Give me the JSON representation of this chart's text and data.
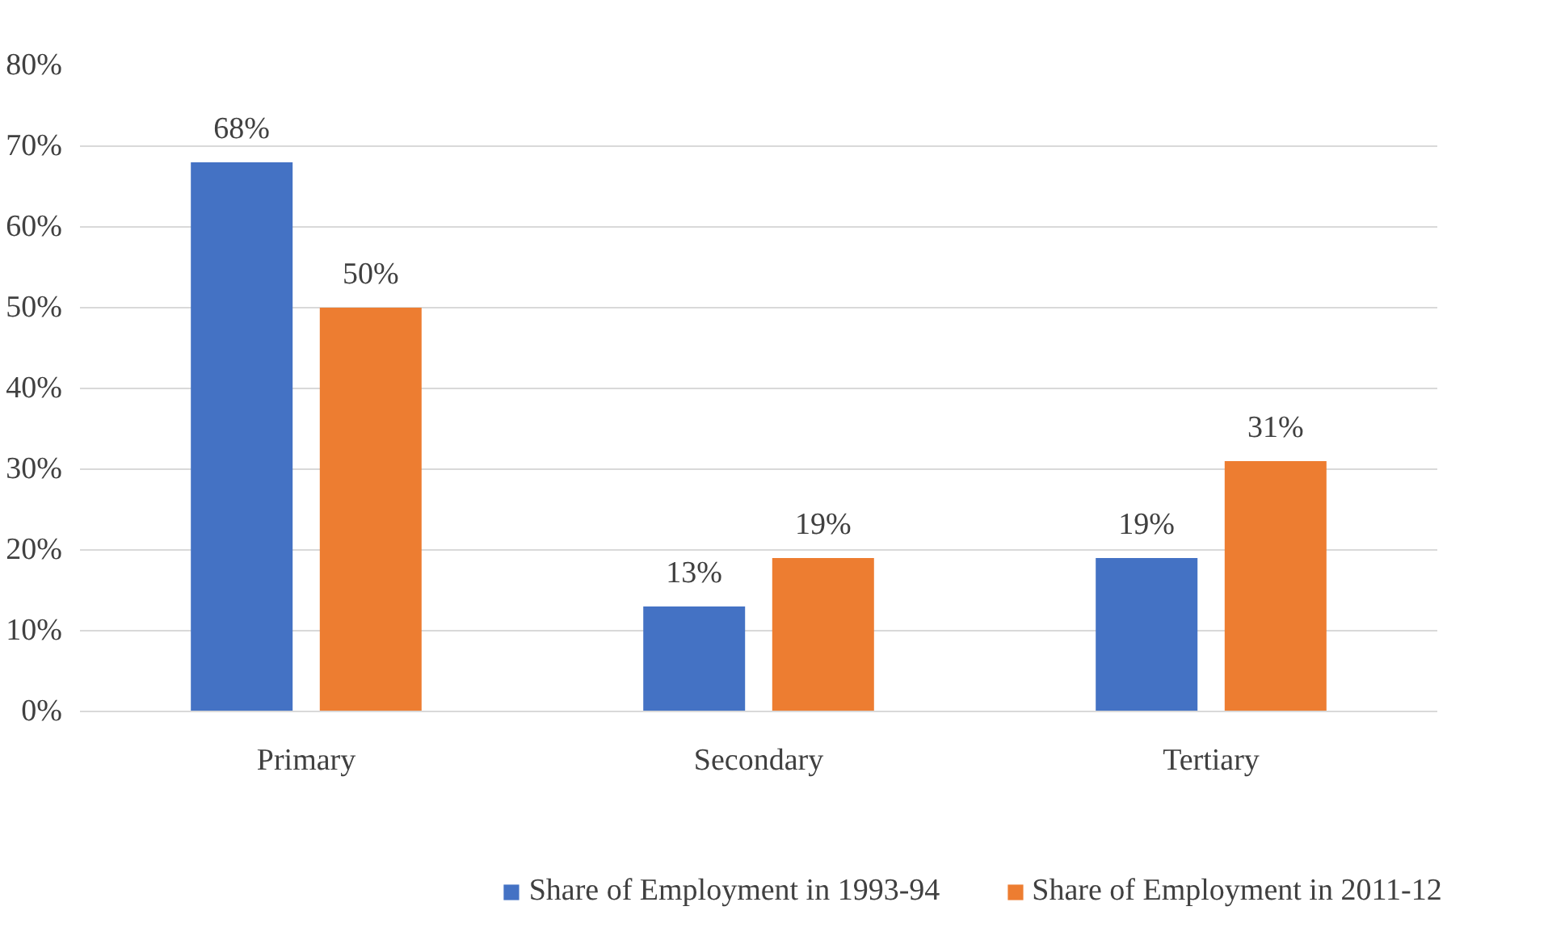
{
  "chart_data": {
    "type": "bar",
    "categories": [
      "Primary",
      "Secondary",
      "Tertiary"
    ],
    "series": [
      {
        "name": "Share of Employment in 1993-94",
        "color": "#4472c4",
        "values": [
          68,
          13,
          19
        ]
      },
      {
        "name": "Share of Employment in 2011-12",
        "color": "#ed7d31",
        "values": [
          50,
          19,
          31
        ]
      }
    ],
    "ylim": [
      0,
      80
    ],
    "yticks": [
      {
        "value": 0,
        "label": "0%"
      },
      {
        "value": 10,
        "label": "10%"
      },
      {
        "value": 20,
        "label": "20%"
      },
      {
        "value": 30,
        "label": "30%"
      },
      {
        "value": 40,
        "label": "40%"
      },
      {
        "value": 50,
        "label": "50%"
      },
      {
        "value": 60,
        "label": "60%"
      },
      {
        "value": 70,
        "label": "70%"
      },
      {
        "value": 80,
        "label": "80%"
      }
    ],
    "value_labels": [
      [
        "68%",
        "13%",
        "19%"
      ],
      [
        "50%",
        "19%",
        "31%"
      ]
    ],
    "grid": "y",
    "legend": "bottom"
  }
}
